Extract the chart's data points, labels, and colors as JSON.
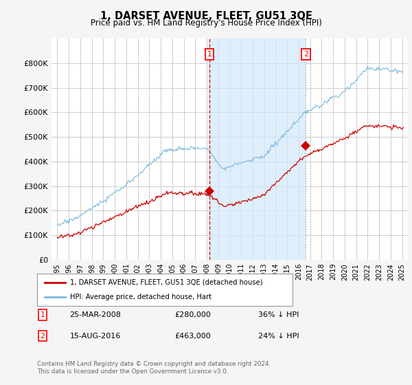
{
  "title": "1, DARSET AVENUE, FLEET, GU51 3QE",
  "subtitle": "Price paid vs. HM Land Registry's House Price Index (HPI)",
  "ylim": [
    0,
    900000
  ],
  "yticks": [
    0,
    100000,
    200000,
    300000,
    400000,
    500000,
    600000,
    700000,
    800000
  ],
  "ytick_labels": [
    "£0",
    "£100K",
    "£200K",
    "£300K",
    "£400K",
    "£500K",
    "£600K",
    "£700K",
    "£800K"
  ],
  "hpi_color": "#7ab8e0",
  "price_color": "#cc0000",
  "vline1_color": "#cc0000",
  "vline1_style": "--",
  "vline2_color": "#8899aa",
  "vline2_style": ":",
  "shade_color": "#d0e8f8",
  "background_color": "#f5f5f5",
  "plot_bg_color": "#ffffff",
  "grid_color": "#cccccc",
  "marker1_year": 2008.23,
  "marker1_price": 280000,
  "marker1_label": "1",
  "marker2_year": 2016.62,
  "marker2_price": 463000,
  "marker2_label": "2",
  "legend_label_price": "1, DARSET AVENUE, FLEET, GU51 3QE (detached house)",
  "legend_label_hpi": "HPI: Average price, detached house, Hart",
  "footer_text": "Contains HM Land Registry data © Crown copyright and database right 2024.\nThis data is licensed under the Open Government Licence v3.0.",
  "table_rows": [
    {
      "num": "1",
      "date": "25-MAR-2008",
      "price": "£280,000",
      "hpi": "36% ↓ HPI"
    },
    {
      "num": "2",
      "date": "15-AUG-2016",
      "price": "£463,000",
      "hpi": "24% ↓ HPI"
    }
  ]
}
